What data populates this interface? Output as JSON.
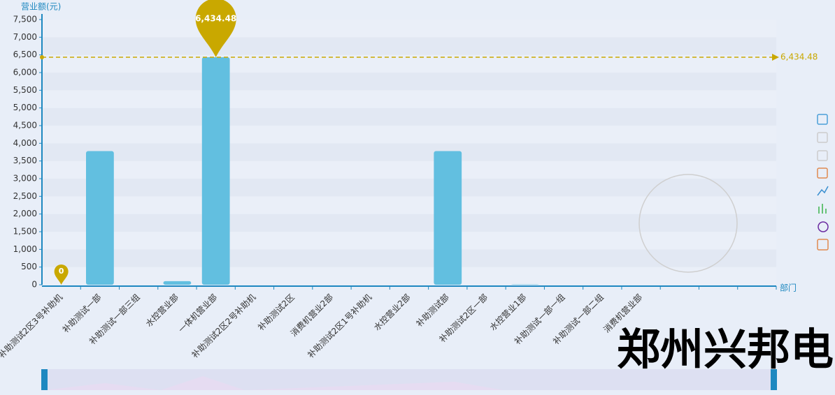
{
  "chart_data": {
    "type": "bar",
    "y_axis_name": "营业额(元)",
    "x_axis_name": "部门",
    "categories": [
      "补助测试2区3号补助机",
      "补助测试一部",
      "补助测试一部三组",
      "水控营业部",
      "一体机营业部",
      "补助测试2区2号补助机",
      "补助测试2区",
      "消费机营业2部",
      "补助测试2区1号补助机",
      "水控营业2部",
      "补助测试部",
      "补助测试2区一部",
      "水控营业1部",
      "补助测试一部一组",
      "补助测试一部二组",
      "消费机营业部",
      null,
      null,
      null
    ],
    "values": [
      0,
      3780,
      0,
      100,
      6434.48,
      0,
      0,
      0,
      0,
      0,
      3780,
      0,
      10,
      0,
      0,
      0,
      null,
      null,
      null
    ],
    "color": "#62bfe0",
    "ylim": [
      0,
      7500
    ],
    "yticks": [
      0,
      500,
      {
        "value": 1000,
        "label": "1,000"
      },
      {
        "value": 1500,
        "label": "1,500"
      },
      {
        "value": 2000,
        "label": "2,000"
      },
      {
        "value": 2500,
        "label": "2,500"
      },
      {
        "value": 3000,
        "label": "3,000"
      },
      {
        "value": 3500,
        "label": "3,500"
      },
      {
        "value": 4000,
        "label": "4,000"
      },
      {
        "value": 4500,
        "label": "4,500"
      },
      {
        "value": 5000,
        "label": "5,000"
      },
      {
        "value": 5500,
        "label": "5,500"
      },
      {
        "value": 6000,
        "label": "6,000"
      },
      {
        "value": 6500,
        "label": "6,500"
      },
      {
        "value": 7000,
        "label": "7,000"
      },
      {
        "value": 7500,
        "label": "7,500"
      }
    ],
    "max_point": {
      "value": 6434.48,
      "label": "6,434.48"
    },
    "min_point": {
      "value": 0,
      "label": "0"
    },
    "mark_line": {
      "value": 6434.48,
      "label": "6,434.48"
    },
    "mark_color": "#c9a800",
    "watermark": "郑州兴邦电子"
  }
}
